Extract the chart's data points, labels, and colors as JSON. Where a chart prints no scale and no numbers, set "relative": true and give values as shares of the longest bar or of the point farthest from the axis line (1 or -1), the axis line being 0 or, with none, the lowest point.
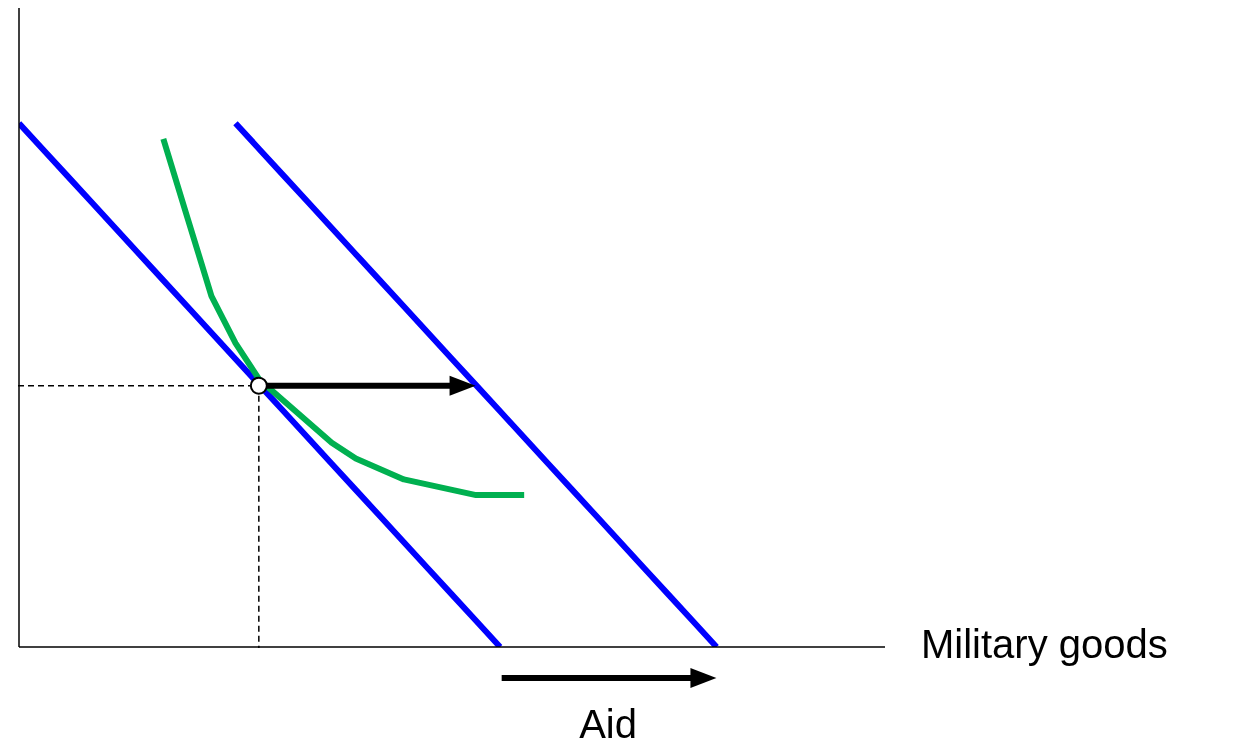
{
  "chart_data": {
    "type": "line",
    "relative": true,
    "xlabel": "Military goods",
    "annotations": [
      "Aid"
    ],
    "categories": [
      null,
      null,
      null,
      null,
      null,
      null,
      null,
      null,
      null,
      null,
      null,
      null,
      null,
      null,
      null,
      null,
      null,
      null,
      null,
      null,
      null,
      null,
      null,
      null,
      null,
      null,
      null,
      null,
      null,
      null,
      null,
      null,
      null,
      null,
      null,
      null,
      null
    ],
    "series": [
      {
        "color": "#0000ff",
        "values": [
          1,
          0.95,
          0.9,
          0.85,
          0.8,
          0.75,
          0.7,
          0.65,
          0.6,
          0.55,
          0.5,
          0.45,
          0.4,
          0.35,
          0.3,
          0.25,
          0.2,
          0.15,
          0.1,
          0.05,
          0,
          null,
          null,
          null,
          null,
          null,
          null,
          null,
          null,
          null,
          null,
          null,
          null,
          null,
          null,
          null,
          null
        ]
      },
      {
        "color": "#0000ff",
        "values": [
          null,
          null,
          null,
          null,
          null,
          null,
          null,
          null,
          null,
          1,
          0.95,
          0.9,
          0.85,
          0.8,
          0.75,
          0.7,
          0.65,
          0.6,
          0.55,
          0.5,
          0.45,
          0.4,
          0.35,
          0.3,
          0.25,
          0.2,
          0.15,
          0.1,
          0.05,
          0,
          null,
          null,
          null,
          null,
          null,
          null,
          null
        ]
      },
      {
        "color": "#00b050",
        "values": [
          null,
          null,
          null,
          null,
          null,
          null,
          0.97,
          0.82,
          0.67,
          0.58,
          0.51,
          0.47,
          0.43,
          0.39,
          0.36,
          0.34,
          0.32,
          0.31,
          0.3,
          0.29,
          0.29,
          0.29,
          null,
          null,
          null,
          null,
          null,
          null,
          null,
          null,
          null,
          null,
          null,
          null,
          null,
          null,
          null
        ]
      }
    ]
  }
}
